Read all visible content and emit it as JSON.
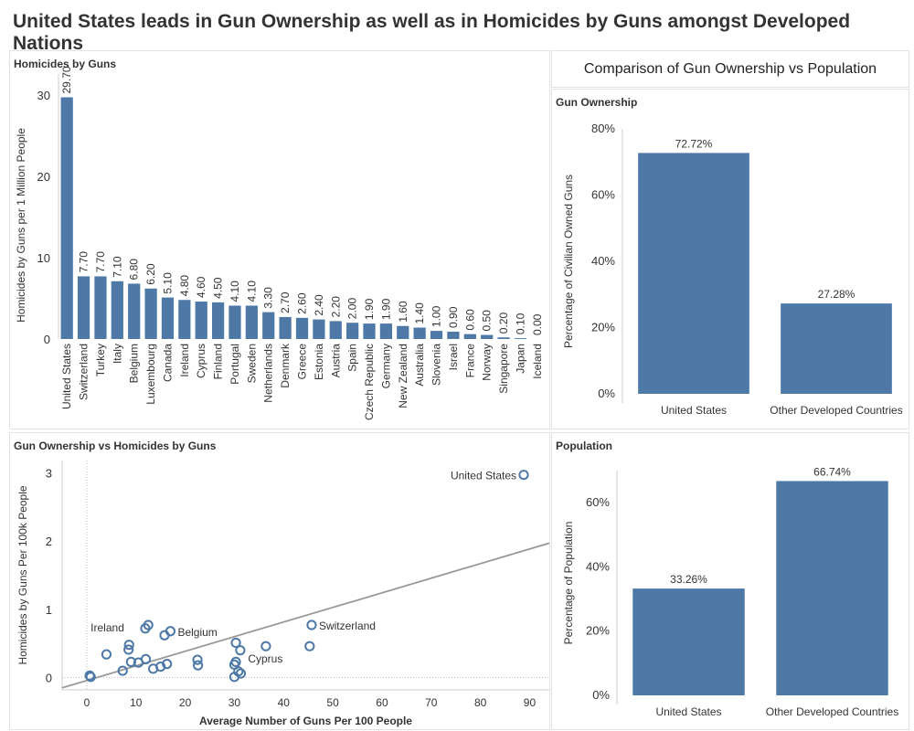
{
  "title": "United States leads in Gun Ownership as well as in Homicides by Guns amongst Developed Nations",
  "comparison_title": "Comparison of Gun Ownership vs Population",
  "colors": {
    "bar": "#4e79a7",
    "axis": "#cccccc",
    "trend": "#999999"
  },
  "chart_data": [
    {
      "id": "homicides",
      "type": "bar",
      "title": "Homicides by Guns",
      "ylabel": "Homicides by Guns per 1 Million People",
      "ylim": [
        0,
        32
      ],
      "yticks": [
        0,
        10,
        20,
        30
      ],
      "categories": [
        "United States",
        "Switzerland",
        "Turkey",
        "Italy",
        "Belgium",
        "Luxembourg",
        "Canada",
        "Ireland",
        "Cyprus",
        "Finland",
        "Portugal",
        "Sweden",
        "Netherlands",
        "Denmark",
        "Greece",
        "Estonia",
        "Austria",
        "Spain",
        "Czech Republic",
        "Germany",
        "New Zealand",
        "Australia",
        "Slovenia",
        "Israel",
        "France",
        "Norway",
        "Singapore",
        "Japan",
        "Iceland"
      ],
      "values": [
        29.7,
        7.7,
        7.7,
        7.1,
        6.8,
        6.2,
        5.1,
        4.8,
        4.6,
        4.5,
        4.1,
        4.1,
        3.3,
        2.7,
        2.6,
        2.4,
        2.2,
        2.0,
        1.9,
        1.9,
        1.6,
        1.4,
        1.0,
        0.9,
        0.6,
        0.5,
        0.2,
        0.1,
        0.0
      ],
      "labels": [
        "29.70",
        "7.70",
        "7.70",
        "7.10",
        "6.80",
        "6.20",
        "5.10",
        "4.80",
        "4.60",
        "4.50",
        "4.10",
        "4.10",
        "3.30",
        "2.70",
        "2.60",
        "2.40",
        "2.20",
        "2.00",
        "1.90",
        "1.90",
        "1.60",
        "1.40",
        "1.00",
        "0.90",
        "0.60",
        "0.50",
        "0.20",
        "0.10",
        "0.00"
      ]
    },
    {
      "id": "ownership",
      "type": "bar",
      "title": "Gun Ownership",
      "ylabel": "Percentage of Civilian Owned Guns",
      "ylim": [
        0,
        80
      ],
      "yticks": [
        0,
        20,
        40,
        60,
        80
      ],
      "ytick_labels": [
        "0%",
        "20%",
        "40%",
        "60%",
        "80%"
      ],
      "categories": [
        "United States",
        "Other Developed Countries"
      ],
      "values": [
        72.72,
        27.28
      ],
      "labels": [
        "72.72%",
        "27.28%"
      ]
    },
    {
      "id": "scatter",
      "type": "scatter",
      "title": "Gun Ownership vs Homicides by Guns",
      "xlabel": "Average Number of Guns Per 100 People",
      "ylabel": "Homicides by Guns Per 100k People",
      "xlim": [
        -5,
        94
      ],
      "ylim": [
        -0.18,
        3.18
      ],
      "xticks": [
        0,
        10,
        20,
        30,
        40,
        50,
        60,
        70,
        80,
        90
      ],
      "yticks": [
        0,
        1,
        2,
        3
      ],
      "trend": [
        [
          -5,
          -0.15
        ],
        [
          94,
          1.97
        ]
      ],
      "points": [
        {
          "x": 88.8,
          "y": 2.97,
          "label": "United States"
        },
        {
          "x": 45.7,
          "y": 0.77,
          "label": "Switzerland"
        },
        {
          "x": 45.3,
          "y": 0.46
        },
        {
          "x": 36.4,
          "y": 0.46
        },
        {
          "x": 31.2,
          "y": 0.4
        },
        {
          "x": 30.3,
          "y": 0.51
        },
        {
          "x": 30.3,
          "y": 0.23
        },
        {
          "x": 30.0,
          "y": 0.19
        },
        {
          "x": 31.3,
          "y": 0.06
        },
        {
          "x": 30.8,
          "y": 0.09
        },
        {
          "x": 30.0,
          "y": 0.01
        },
        {
          "x": 22.5,
          "y": 0.26
        },
        {
          "x": 22.6,
          "y": 0.18
        },
        {
          "x": 17.0,
          "y": 0.68,
          "label": "Belgium"
        },
        {
          "x": 15.8,
          "y": 0.62
        },
        {
          "x": 12.5,
          "y": 0.77
        },
        {
          "x": 11.9,
          "y": 0.72
        },
        {
          "x": 16.3,
          "y": 0.2
        },
        {
          "x": 15.0,
          "y": 0.16
        },
        {
          "x": 12.0,
          "y": 0.27
        },
        {
          "x": 13.5,
          "y": 0.13
        },
        {
          "x": 8.6,
          "y": 0.48
        },
        {
          "x": 8.5,
          "y": 0.41
        },
        {
          "x": 9.0,
          "y": 0.23
        },
        {
          "x": 10.5,
          "y": 0.22
        },
        {
          "x": 7.3,
          "y": 0.1
        },
        {
          "x": 4.0,
          "y": 0.34
        },
        {
          "x": 0.6,
          "y": 0.03
        },
        {
          "x": 0.8,
          "y": 0.01
        }
      ],
      "annotations": [
        {
          "text": "Ireland",
          "x": 4.2,
          "y": 0.68
        },
        {
          "text": "Cyprus",
          "x": 36.3,
          "y": 0.22
        }
      ]
    },
    {
      "id": "population",
      "type": "bar",
      "title": "Population",
      "ylabel": "Percentage of Population",
      "ylim": [
        0,
        70
      ],
      "yticks": [
        0,
        20,
        40,
        60
      ],
      "ytick_labels": [
        "0%",
        "20%",
        "40%",
        "60%"
      ],
      "categories": [
        "United States",
        "Other Developed Countries"
      ],
      "values": [
        33.26,
        66.74
      ],
      "labels": [
        "33.26%",
        "66.74%"
      ]
    }
  ]
}
